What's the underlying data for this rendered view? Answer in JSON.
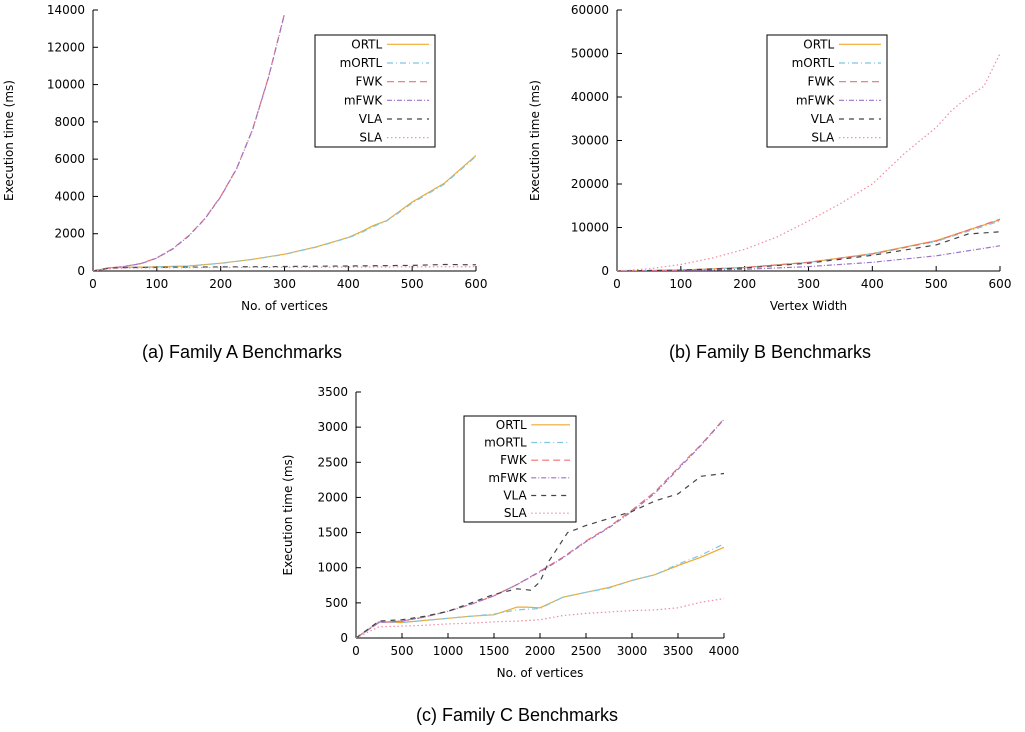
{
  "chart_data": [
    {
      "type": "line",
      "id": "a",
      "caption": "(a) Family A Benchmarks",
      "xlabel": "No. of vertices",
      "ylabel": "Execution time (ms)",
      "xlim": [
        0,
        600
      ],
      "ylim": [
        0,
        14000
      ],
      "xticks": [
        0,
        100,
        200,
        300,
        400,
        500,
        600
      ],
      "yticks": [
        0,
        2000,
        4000,
        6000,
        8000,
        10000,
        12000,
        14000
      ],
      "legend_position": "top-right",
      "series": [
        {
          "name": "ORTL",
          "x": [
            0,
            25,
            50,
            100,
            150,
            200,
            250,
            300,
            350,
            400,
            420,
            440,
            460,
            480,
            500,
            550,
            600
          ],
          "y": [
            0,
            180,
            200,
            220,
            270,
            420,
            630,
            900,
            1300,
            1800,
            2100,
            2450,
            2700,
            3200,
            3700,
            4700,
            6200
          ]
        },
        {
          "name": "mORTL",
          "x": [
            0,
            25,
            50,
            100,
            150,
            200,
            250,
            300,
            350,
            400,
            420,
            440,
            460,
            480,
            500,
            550,
            600
          ],
          "y": [
            0,
            180,
            200,
            220,
            270,
            410,
            620,
            890,
            1280,
            1780,
            2050,
            2400,
            2680,
            3150,
            3650,
            4650,
            6150
          ]
        },
        {
          "name": "FWK",
          "x": [
            0,
            25,
            50,
            75,
            100,
            125,
            150,
            175,
            200,
            225,
            250,
            275,
            300
          ],
          "y": [
            0,
            150,
            250,
            400,
            700,
            1200,
            1900,
            2800,
            4000,
            5500,
            7600,
            10400,
            13800
          ]
        },
        {
          "name": "mFWK",
          "x": [
            0,
            25,
            50,
            75,
            100,
            125,
            150,
            175,
            200,
            225,
            250,
            275,
            300
          ],
          "y": [
            0,
            150,
            250,
            390,
            690,
            1180,
            1880,
            2780,
            3980,
            5480,
            7580,
            10380,
            13780
          ]
        },
        {
          "name": "VLA",
          "x": [
            0,
            25,
            50,
            100,
            200,
            300,
            400,
            500,
            550,
            600
          ],
          "y": [
            0,
            150,
            180,
            200,
            220,
            240,
            270,
            300,
            350,
            330
          ]
        },
        {
          "name": "SLA",
          "x": [
            0,
            25,
            50,
            100,
            200,
            300,
            400,
            500,
            600
          ],
          "y": [
            0,
            120,
            150,
            170,
            190,
            200,
            210,
            220,
            230
          ]
        }
      ]
    },
    {
      "type": "line",
      "id": "b",
      "caption": "(b) Family B Benchmarks",
      "xlabel": "Vertex Width",
      "ylabel": "Execution time (ms)",
      "xlim": [
        0,
        600
      ],
      "ylim": [
        0,
        60000
      ],
      "xticks": [
        0,
        100,
        200,
        300,
        400,
        500,
        600
      ],
      "yticks": [
        0,
        10000,
        20000,
        30000,
        40000,
        50000,
        60000
      ],
      "legend_position": "top-left",
      "series": [
        {
          "name": "ORTL",
          "x": [
            0,
            100,
            200,
            300,
            400,
            500,
            600
          ],
          "y": [
            0,
            200,
            800,
            2000,
            4000,
            7000,
            11800
          ]
        },
        {
          "name": "mORTL",
          "x": [
            0,
            100,
            200,
            300,
            400,
            500,
            600
          ],
          "y": [
            0,
            200,
            780,
            1950,
            3900,
            6800,
            11500
          ]
        },
        {
          "name": "FWK",
          "x": [
            0,
            100,
            200,
            300,
            400,
            500,
            600
          ],
          "y": [
            0,
            200,
            800,
            2000,
            3900,
            6900,
            11900
          ]
        },
        {
          "name": "mFWK",
          "x": [
            0,
            100,
            200,
            300,
            400,
            500,
            600
          ],
          "y": [
            0,
            100,
            400,
            1000,
            2000,
            3500,
            5800
          ]
        },
        {
          "name": "VLA",
          "x": [
            0,
            100,
            200,
            300,
            400,
            500,
            550,
            600
          ],
          "y": [
            0,
            200,
            700,
            1800,
            3600,
            6000,
            8500,
            9000
          ]
        },
        {
          "name": "SLA",
          "x": [
            0,
            50,
            100,
            150,
            200,
            250,
            300,
            350,
            400,
            425,
            450,
            500,
            525,
            550,
            575,
            600
          ],
          "y": [
            0,
            500,
            1500,
            3000,
            5000,
            7800,
            11500,
            15500,
            20000,
            23500,
            27000,
            33000,
            37000,
            40000,
            42500,
            50000
          ]
        }
      ]
    },
    {
      "type": "line",
      "id": "c",
      "caption": "(c) Family C Benchmarks",
      "xlabel": "No. of vertices",
      "ylabel": "Execution time (ms)",
      "xlim": [
        0,
        4000
      ],
      "ylim": [
        0,
        3500
      ],
      "xticks": [
        0,
        500,
        1000,
        1500,
        2000,
        2500,
        3000,
        3500,
        4000
      ],
      "yticks": [
        0,
        500,
        1000,
        1500,
        2000,
        2500,
        3000,
        3500
      ],
      "legend_position": "top-left",
      "series": [
        {
          "name": "ORTL",
          "x": [
            0,
            250,
            500,
            750,
            1000,
            1250,
            1500,
            1750,
            1850,
            2000,
            2250,
            2500,
            2750,
            3000,
            3250,
            3500,
            3750,
            4000
          ],
          "y": [
            0,
            230,
            220,
            250,
            280,
            310,
            330,
            440,
            440,
            430,
            580,
            650,
            720,
            820,
            900,
            1030,
            1150,
            1290
          ]
        },
        {
          "name": "mORTL",
          "x": [
            0,
            250,
            500,
            750,
            1000,
            1250,
            1500,
            1750,
            2000,
            2250,
            2500,
            2750,
            3000,
            3250,
            3500,
            3750,
            4000
          ],
          "y": [
            0,
            230,
            220,
            250,
            280,
            310,
            340,
            400,
            420,
            580,
            650,
            710,
            820,
            900,
            1050,
            1180,
            1340
          ]
        },
        {
          "name": "FWK",
          "x": [
            0,
            250,
            500,
            750,
            1000,
            1250,
            1500,
            1750,
            2000,
            2250,
            2500,
            2750,
            3000,
            3250,
            3500,
            3750,
            4000
          ],
          "y": [
            0,
            220,
            240,
            300,
            380,
            480,
            600,
            760,
            950,
            1150,
            1380,
            1580,
            1820,
            2080,
            2420,
            2750,
            3120
          ]
        },
        {
          "name": "mFWK",
          "x": [
            0,
            250,
            500,
            750,
            1000,
            1250,
            1500,
            1750,
            2000,
            2250,
            2500,
            2750,
            3000,
            3250,
            3500,
            3750,
            4000
          ],
          "y": [
            0,
            220,
            240,
            300,
            380,
            480,
            600,
            760,
            940,
            1140,
            1370,
            1570,
            1800,
            2060,
            2400,
            2740,
            3110
          ]
        },
        {
          "name": "VLA",
          "x": [
            0,
            250,
            500,
            750,
            1000,
            1250,
            1500,
            1750,
            1900,
            2000,
            2100,
            2300,
            2500,
            2750,
            3000,
            3250,
            3500,
            3750,
            4000
          ],
          "y": [
            0,
            240,
            260,
            310,
            380,
            500,
            620,
            700,
            680,
            800,
            1100,
            1500,
            1600,
            1700,
            1800,
            1950,
            2050,
            2300,
            2340
          ]
        },
        {
          "name": "SLA",
          "x": [
            0,
            250,
            500,
            750,
            1000,
            1250,
            1500,
            1750,
            2000,
            2250,
            2500,
            2750,
            3000,
            3250,
            3500,
            3750,
            4000
          ],
          "y": [
            0,
            160,
            170,
            180,
            200,
            210,
            230,
            240,
            260,
            320,
            350,
            370,
            390,
            400,
            430,
            510,
            560
          ]
        }
      ]
    }
  ],
  "series_styles": {
    "ORTL": {
      "color": "#f0a830",
      "dash": ""
    },
    "mORTL": {
      "color": "#7ec8e3",
      "dash": "6 3 1 3"
    },
    "FWK": {
      "color": "#f07070",
      "dash": "7 4"
    },
    "mFWK": {
      "color": "#9c74c9",
      "dash": "5 2 1 2"
    },
    "VLA": {
      "color": "#444444",
      "dash": "5 5"
    },
    "SLA": {
      "color": "#f08ca0",
      "dash": "1.5 2.5"
    }
  }
}
